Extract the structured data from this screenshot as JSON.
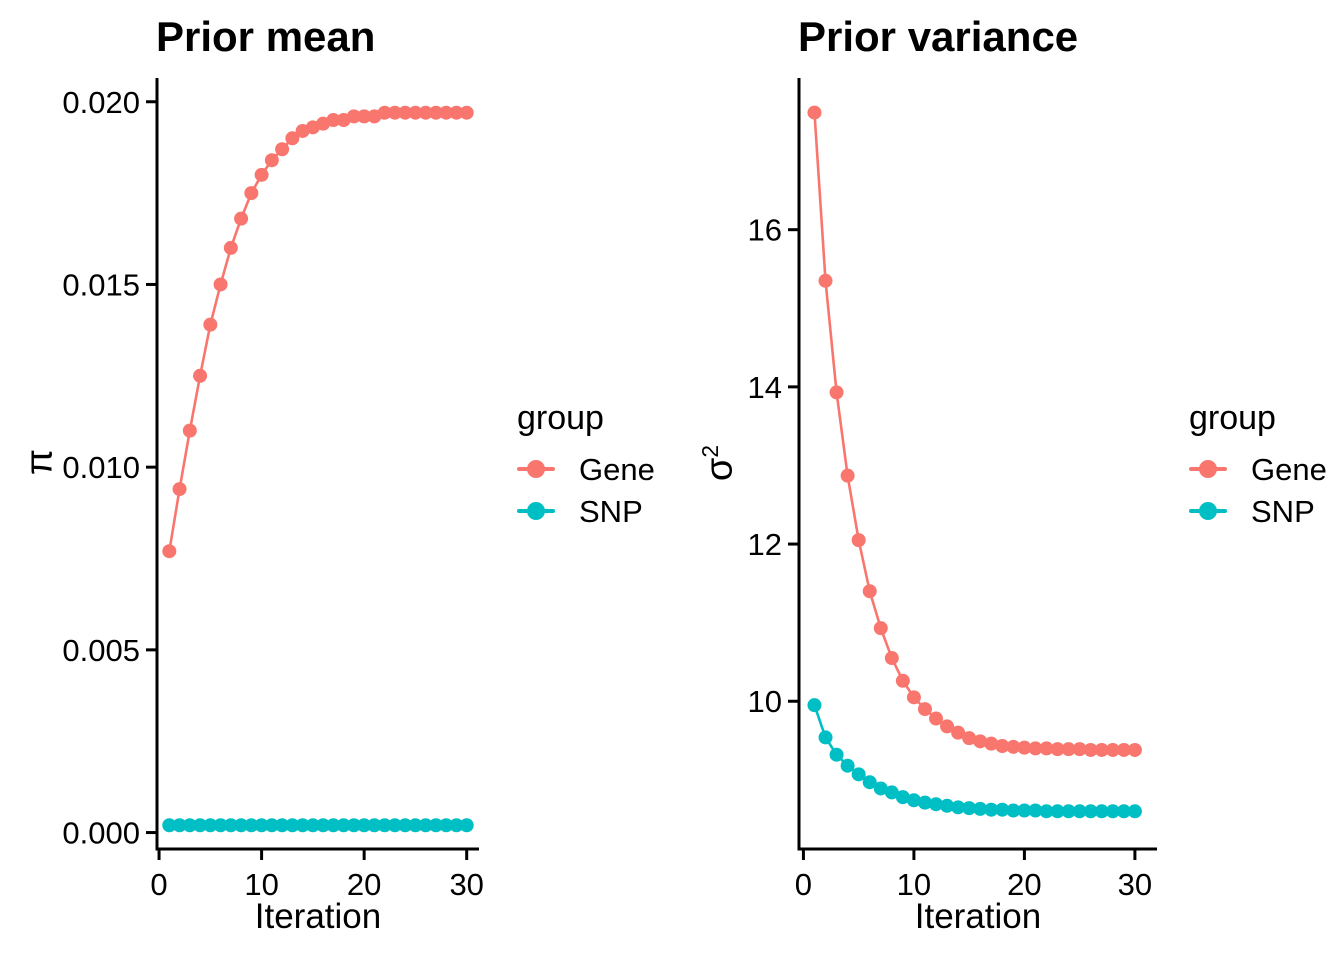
{
  "figure": {
    "background": "#FFFFFF",
    "text_color": "#000000",
    "axis_color": "#000000"
  },
  "chart_data": [
    {
      "type": "line",
      "title": "Prior mean",
      "xlabel": "Iteration",
      "ylabel": "π",
      "ylabel_main": "π",
      "ylabel_sup": "",
      "legend_title": "group",
      "legend_position": "right",
      "grid": false,
      "x": [
        1,
        2,
        3,
        4,
        5,
        6,
        7,
        8,
        9,
        10,
        11,
        12,
        13,
        14,
        15,
        16,
        17,
        18,
        19,
        20,
        21,
        22,
        23,
        24,
        25,
        26,
        27,
        28,
        29,
        30
      ],
      "xticks": [
        0,
        10,
        20,
        30
      ],
      "xtick_labels": [
        "0",
        "10",
        "20",
        "30"
      ],
      "yticks": [
        0,
        0.005,
        0.01,
        0.015,
        0.02
      ],
      "ytick_labels": [
        "0.000",
        "0.005",
        "0.010",
        "0.015",
        "0.020"
      ],
      "xlim": [
        -0.2,
        31.2
      ],
      "ylim": [
        -0.00045,
        0.02065
      ],
      "series": [
        {
          "name": "Gene",
          "color": "#F8766D",
          "values": [
            0.0077,
            0.0094,
            0.011,
            0.0125,
            0.0139,
            0.015,
            0.016,
            0.0168,
            0.0175,
            0.018,
            0.0184,
            0.0187,
            0.019,
            0.0192,
            0.0193,
            0.0194,
            0.0195,
            0.0195,
            0.0196,
            0.0196,
            0.0196,
            0.0197,
            0.0197,
            0.0197,
            0.0197,
            0.0197,
            0.0197,
            0.0197,
            0.0197,
            0.0197
          ]
        },
        {
          "name": "SNP",
          "color": "#00BFC4",
          "values": [
            0.0002,
            0.0002,
            0.0002,
            0.0002,
            0.0002,
            0.0002,
            0.0002,
            0.0002,
            0.0002,
            0.0002,
            0.0002,
            0.0002,
            0.0002,
            0.0002,
            0.0002,
            0.0002,
            0.0002,
            0.0002,
            0.0002,
            0.0002,
            0.0002,
            0.0002,
            0.0002,
            0.0002,
            0.0002,
            0.0002,
            0.0002,
            0.0002,
            0.0002,
            0.0002
          ]
        }
      ]
    },
    {
      "type": "line",
      "title": "Prior variance",
      "xlabel": "Iteration",
      "ylabel": "σ²",
      "ylabel_main": "σ",
      "ylabel_sup": "2",
      "legend_title": "group",
      "legend_position": "right",
      "grid": false,
      "x": [
        1,
        2,
        3,
        4,
        5,
        6,
        7,
        8,
        9,
        10,
        11,
        12,
        13,
        14,
        15,
        16,
        17,
        18,
        19,
        20,
        21,
        22,
        23,
        24,
        25,
        26,
        27,
        28,
        29,
        30
      ],
      "xticks": [
        0,
        10,
        20,
        30
      ],
      "xtick_labels": [
        "0",
        "10",
        "20",
        "30"
      ],
      "yticks": [
        10,
        12,
        14,
        16
      ],
      "ytick_labels": [
        "10",
        "12",
        "14",
        "16"
      ],
      "xlim": [
        -0.4,
        32.0
      ],
      "ylim": [
        8.12,
        17.93
      ],
      "series": [
        {
          "name": "Gene",
          "color": "#F8766D",
          "values": [
            17.49,
            15.35,
            13.93,
            12.87,
            12.05,
            11.4,
            10.93,
            10.55,
            10.26,
            10.05,
            9.9,
            9.78,
            9.68,
            9.6,
            9.53,
            9.49,
            9.46,
            9.43,
            9.42,
            9.41,
            9.4,
            9.4,
            9.39,
            9.39,
            9.39,
            9.38,
            9.38,
            9.38,
            9.38,
            9.38
          ]
        },
        {
          "name": "SNP",
          "color": "#00BFC4",
          "values": [
            9.95,
            9.54,
            9.32,
            9.18,
            9.07,
            8.97,
            8.89,
            8.84,
            8.78,
            8.74,
            8.71,
            8.69,
            8.67,
            8.65,
            8.64,
            8.63,
            8.62,
            8.62,
            8.61,
            8.61,
            8.61,
            8.6,
            8.6,
            8.6,
            8.6,
            8.6,
            8.6,
            8.6,
            8.6,
            8.6
          ]
        }
      ]
    }
  ]
}
